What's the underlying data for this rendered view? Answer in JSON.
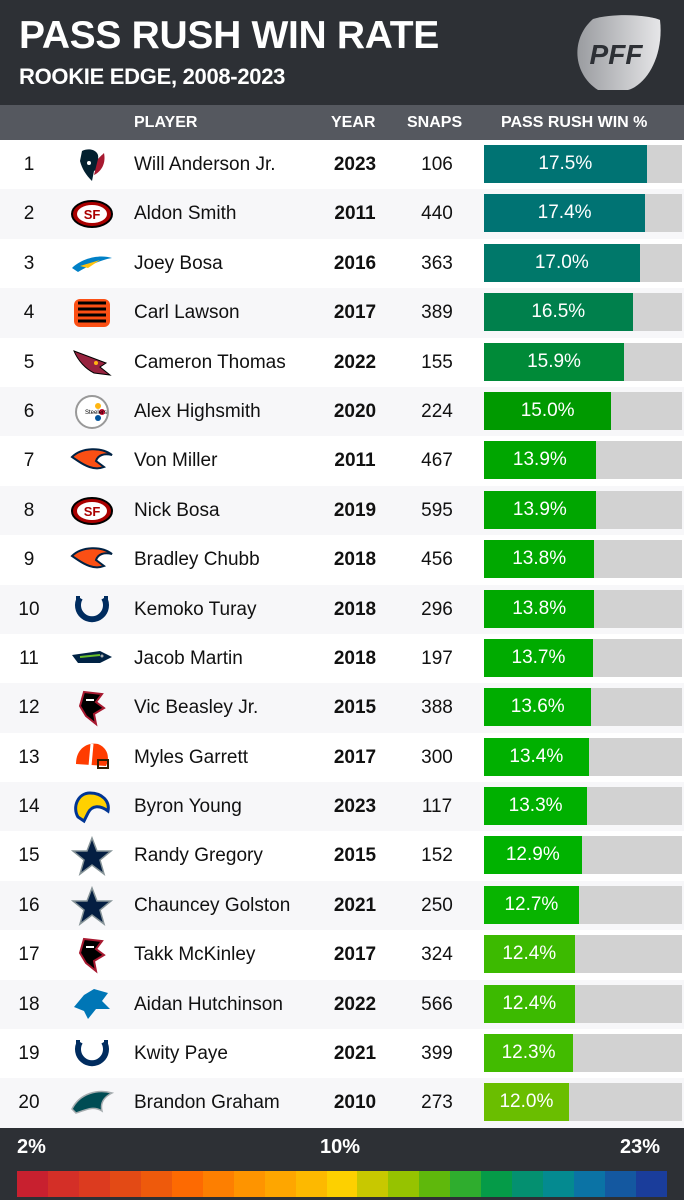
{
  "header": {
    "title": "PASS RUSH WIN RATE",
    "subtitle": "ROOKIE EDGE, 2008-2023",
    "logo_text": "PFF"
  },
  "columns": {
    "player": "PLAYER",
    "year": "YEAR",
    "snaps": "SNAPS",
    "win": "PASS RUSH WIN %"
  },
  "rows": [
    {
      "rank": "1",
      "team": "texans",
      "player": "Will Anderson Jr.",
      "year": "2023",
      "snaps": "106",
      "win": 17.5,
      "win_label": "17.5%",
      "color": "#007373"
    },
    {
      "rank": "2",
      "team": "49ers",
      "player": "Aldon Smith",
      "year": "2011",
      "snaps": "440",
      "win": 17.4,
      "win_label": "17.4%",
      "color": "#007373"
    },
    {
      "rank": "3",
      "team": "chargers",
      "player": "Joey Bosa",
      "year": "2016",
      "snaps": "363",
      "win": 17.0,
      "win_label": "17.0%",
      "color": "#00786a"
    },
    {
      "rank": "4",
      "team": "bengals",
      "player": "Carl Lawson",
      "year": "2017",
      "snaps": "389",
      "win": 16.5,
      "win_label": "16.5%",
      "color": "#00804c"
    },
    {
      "rank": "5",
      "team": "cardinals",
      "player": "Cameron Thomas",
      "year": "2022",
      "snaps": "155",
      "win": 15.9,
      "win_label": "15.9%",
      "color": "#008a38"
    },
    {
      "rank": "6",
      "team": "steelers",
      "player": "Alex Highsmith",
      "year": "2020",
      "snaps": "224",
      "win": 15.0,
      "win_label": "15.0%",
      "color": "#009a00"
    },
    {
      "rank": "7",
      "team": "broncos",
      "player": "Von Miller",
      "year": "2011",
      "snaps": "467",
      "win": 13.9,
      "win_label": "13.9%",
      "color": "#00a600"
    },
    {
      "rank": "8",
      "team": "49ers",
      "player": "Nick Bosa",
      "year": "2019",
      "snaps": "595",
      "win": 13.9,
      "win_label": "13.9%",
      "color": "#00a600"
    },
    {
      "rank": "9",
      "team": "broncos",
      "player": "Bradley Chubb",
      "year": "2018",
      "snaps": "456",
      "win": 13.8,
      "win_label": "13.8%",
      "color": "#00a800"
    },
    {
      "rank": "10",
      "team": "colts",
      "player": "Kemoko Turay",
      "year": "2018",
      "snaps": "296",
      "win": 13.8,
      "win_label": "13.8%",
      "color": "#00a800"
    },
    {
      "rank": "11",
      "team": "seahawks",
      "player": "Jacob Martin",
      "year": "2018",
      "snaps": "197",
      "win": 13.7,
      "win_label": "13.7%",
      "color": "#00ab00"
    },
    {
      "rank": "12",
      "team": "falcons",
      "player": "Vic Beasley Jr.",
      "year": "2015",
      "snaps": "388",
      "win": 13.6,
      "win_label": "13.6%",
      "color": "#00ad00"
    },
    {
      "rank": "13",
      "team": "browns",
      "player": "Myles Garrett",
      "year": "2017",
      "snaps": "300",
      "win": 13.4,
      "win_label": "13.4%",
      "color": "#00b000"
    },
    {
      "rank": "14",
      "team": "rams",
      "player": "Byron Young",
      "year": "2023",
      "snaps": "117",
      "win": 13.3,
      "win_label": "13.3%",
      "color": "#00b000"
    },
    {
      "rank": "15",
      "team": "cowboys",
      "player": "Randy Gregory",
      "year": "2015",
      "snaps": "152",
      "win": 12.9,
      "win_label": "12.9%",
      "color": "#00b200"
    },
    {
      "rank": "16",
      "team": "cowboys",
      "player": "Chauncey Golston",
      "year": "2021",
      "snaps": "250",
      "win": 12.7,
      "win_label": "12.7%",
      "color": "#08b400"
    },
    {
      "rank": "17",
      "team": "falcons",
      "player": "Takk McKinley",
      "year": "2017",
      "snaps": "324",
      "win": 12.4,
      "win_label": "12.4%",
      "color": "#3cba00"
    },
    {
      "rank": "18",
      "team": "lions",
      "player": "Aidan Hutchinson",
      "year": "2022",
      "snaps": "566",
      "win": 12.4,
      "win_label": "12.4%",
      "color": "#3cba00"
    },
    {
      "rank": "19",
      "team": "colts",
      "player": "Kwity Paye",
      "year": "2021",
      "snaps": "399",
      "win": 12.3,
      "win_label": "12.3%",
      "color": "#42bb00"
    },
    {
      "rank": "20",
      "team": "eagles",
      "player": "Brandon Graham",
      "year": "2010",
      "snaps": "273",
      "win": 12.0,
      "win_label": "12.0%",
      "color": "#6abe00"
    }
  ],
  "legend": {
    "min_label": "2%",
    "mid_label": "10%",
    "max_label": "23%",
    "colors": [
      "#c8202f",
      "#d42f27",
      "#dc3b1f",
      "#e34a15",
      "#ee5a0c",
      "#fd6a02",
      "#fd7f01",
      "#fe9400",
      "#fea600",
      "#fdb900",
      "#fdd000",
      "#c8c800",
      "#96c300",
      "#5fb80c",
      "#2fad2e",
      "#059b48",
      "#049070",
      "#048a90",
      "#0b73a5",
      "#1458a0",
      "#1a3d9b"
    ]
  }
}
